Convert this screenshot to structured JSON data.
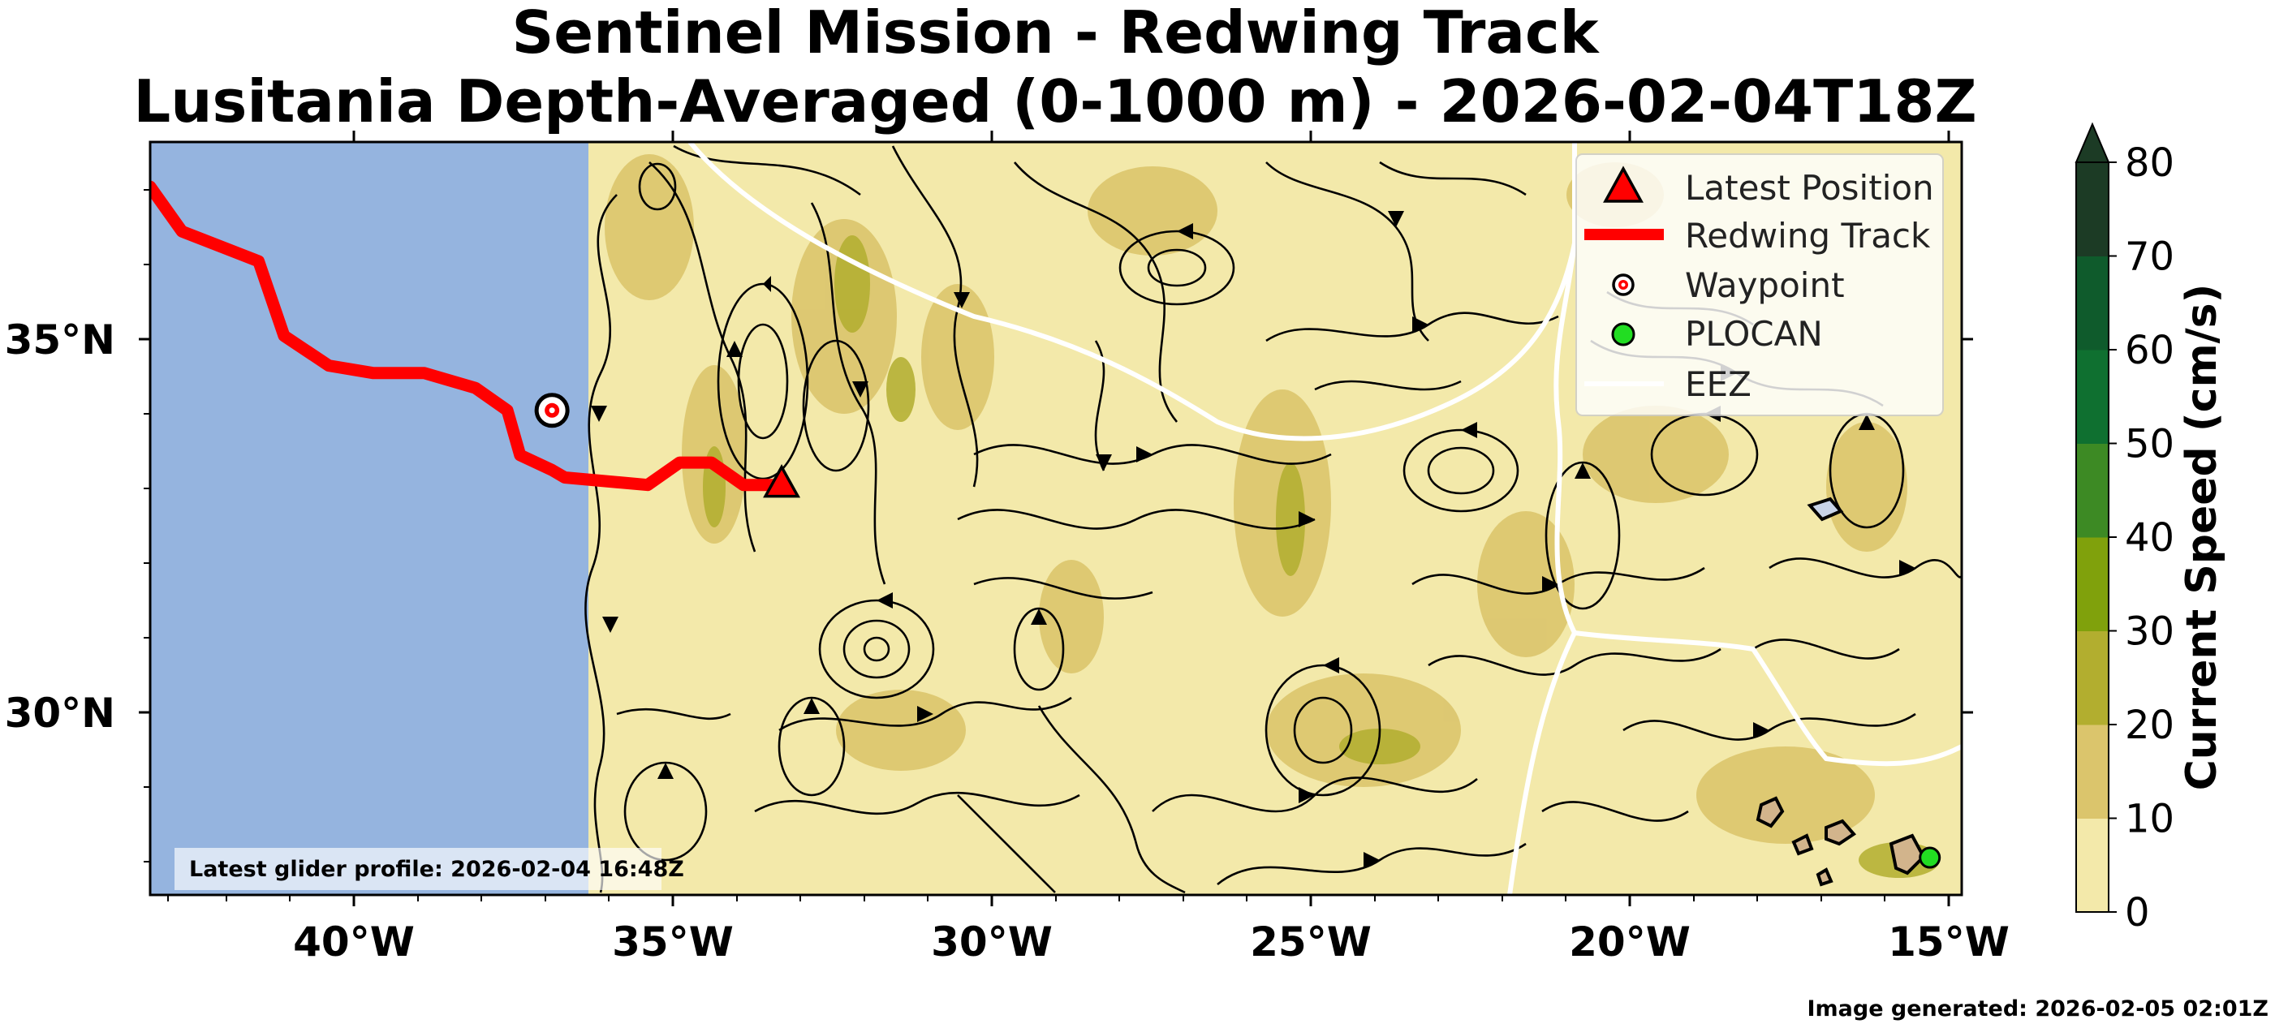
{
  "title": {
    "line1": "Sentinel Mission - Redwing Track",
    "line2": "Lusitania Depth-Averaged (0-1000 m) - 2026-02-04T18Z"
  },
  "axes": {
    "lat_ticks": [
      "35°N",
      "30°N"
    ],
    "lon_ticks": [
      "40°W",
      "35°W",
      "30°W",
      "25°W",
      "20°W",
      "15°W"
    ]
  },
  "legend": {
    "latest_position": "Latest Position",
    "track": "Redwing Track",
    "waypoint": "Waypoint",
    "plocan": "PLOCAN",
    "eez": "EEZ"
  },
  "colorbar": {
    "label": "Current Speed (cm/s)",
    "ticks": [
      "0",
      "10",
      "20",
      "30",
      "40",
      "50",
      "60",
      "70",
      "80"
    ],
    "colors": [
      "#f3e9aa",
      "#dbc56c",
      "#b2ae2f",
      "#80a10c",
      "#3d8a24",
      "#0f7030",
      "#0f5b2c",
      "#1c3b25"
    ]
  },
  "annotations": {
    "latest_profile": "Latest glider profile: 2026-02-04 16:48Z",
    "generated": "Image generated: 2026-02-05 02:01Z"
  },
  "chart_data": {
    "type": "map",
    "title": "Sentinel Mission - Redwing Track / Lusitania Depth-Averaged (0-1000 m) - 2026-02-04T18Z",
    "lon_range": [
      -43.3,
      -14.9
    ],
    "lat_range": [
      27.5,
      37.6
    ],
    "track": [
      [
        -43.3,
        37.0
      ],
      [
        -42.8,
        36.4
      ],
      [
        -42.2,
        36.2
      ],
      [
        -41.6,
        36.0
      ],
      [
        -41.2,
        35.0
      ],
      [
        -40.5,
        34.6
      ],
      [
        -39.8,
        34.5
      ],
      [
        -39.0,
        34.5
      ],
      [
        -38.2,
        34.3
      ],
      [
        -37.7,
        34.0
      ],
      [
        -37.5,
        33.4
      ],
      [
        -37.0,
        33.2
      ],
      [
        -36.8,
        33.1
      ],
      [
        -35.5,
        33.0
      ],
      [
        -35.0,
        33.3
      ],
      [
        -34.5,
        33.3
      ],
      [
        -34.0,
        33.0
      ],
      [
        -33.4,
        33.0
      ]
    ],
    "latest_position": [
      -33.4,
      33.0
    ],
    "waypoint": [
      -37.0,
      34.0
    ],
    "plocan": [
      -15.4,
      28.0
    ],
    "speed_scale_cms": [
      0,
      80
    ]
  }
}
